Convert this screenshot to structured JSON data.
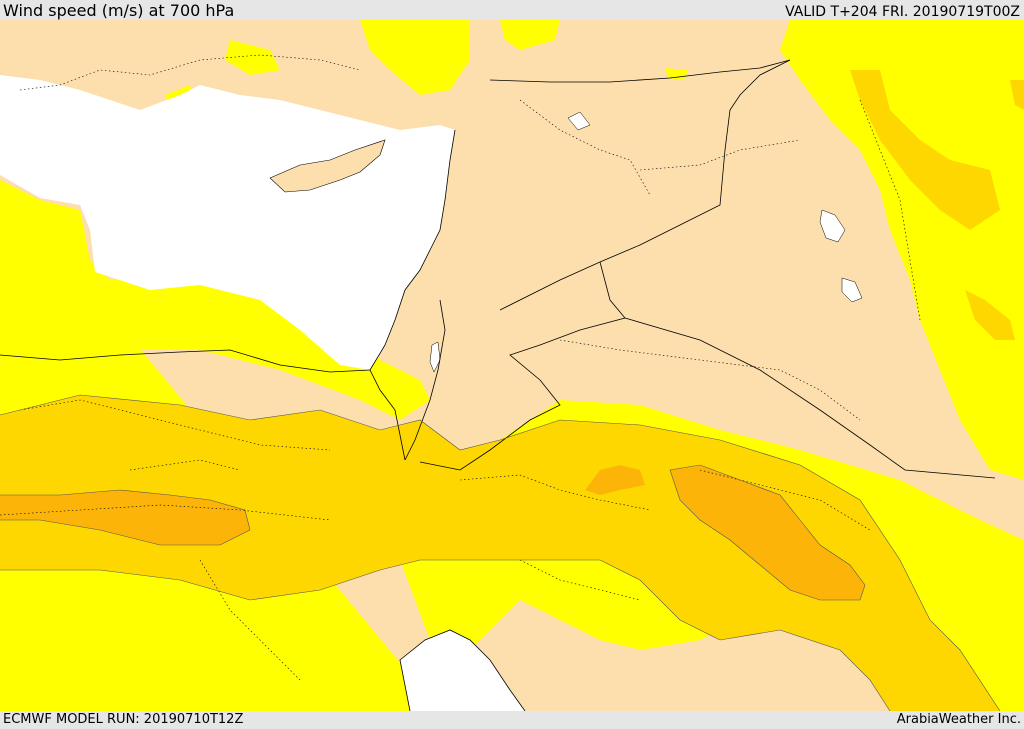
{
  "header": {
    "title": "Wind speed (m/s) at 700 hPa",
    "valid": "VALID T+204 FRI. 20190719T00Z"
  },
  "footer": {
    "model_run": "ECMWF MODEL RUN: 20190710T12Z",
    "brand": "ArabiaWeather Inc."
  },
  "map": {
    "colors": {
      "sea": "#ffffff",
      "land_calm": "#fcdfad",
      "band_1": "#ffff00",
      "band_2": "#ffd700",
      "band_3": "#fcb409",
      "coast": "#000000"
    }
  }
}
